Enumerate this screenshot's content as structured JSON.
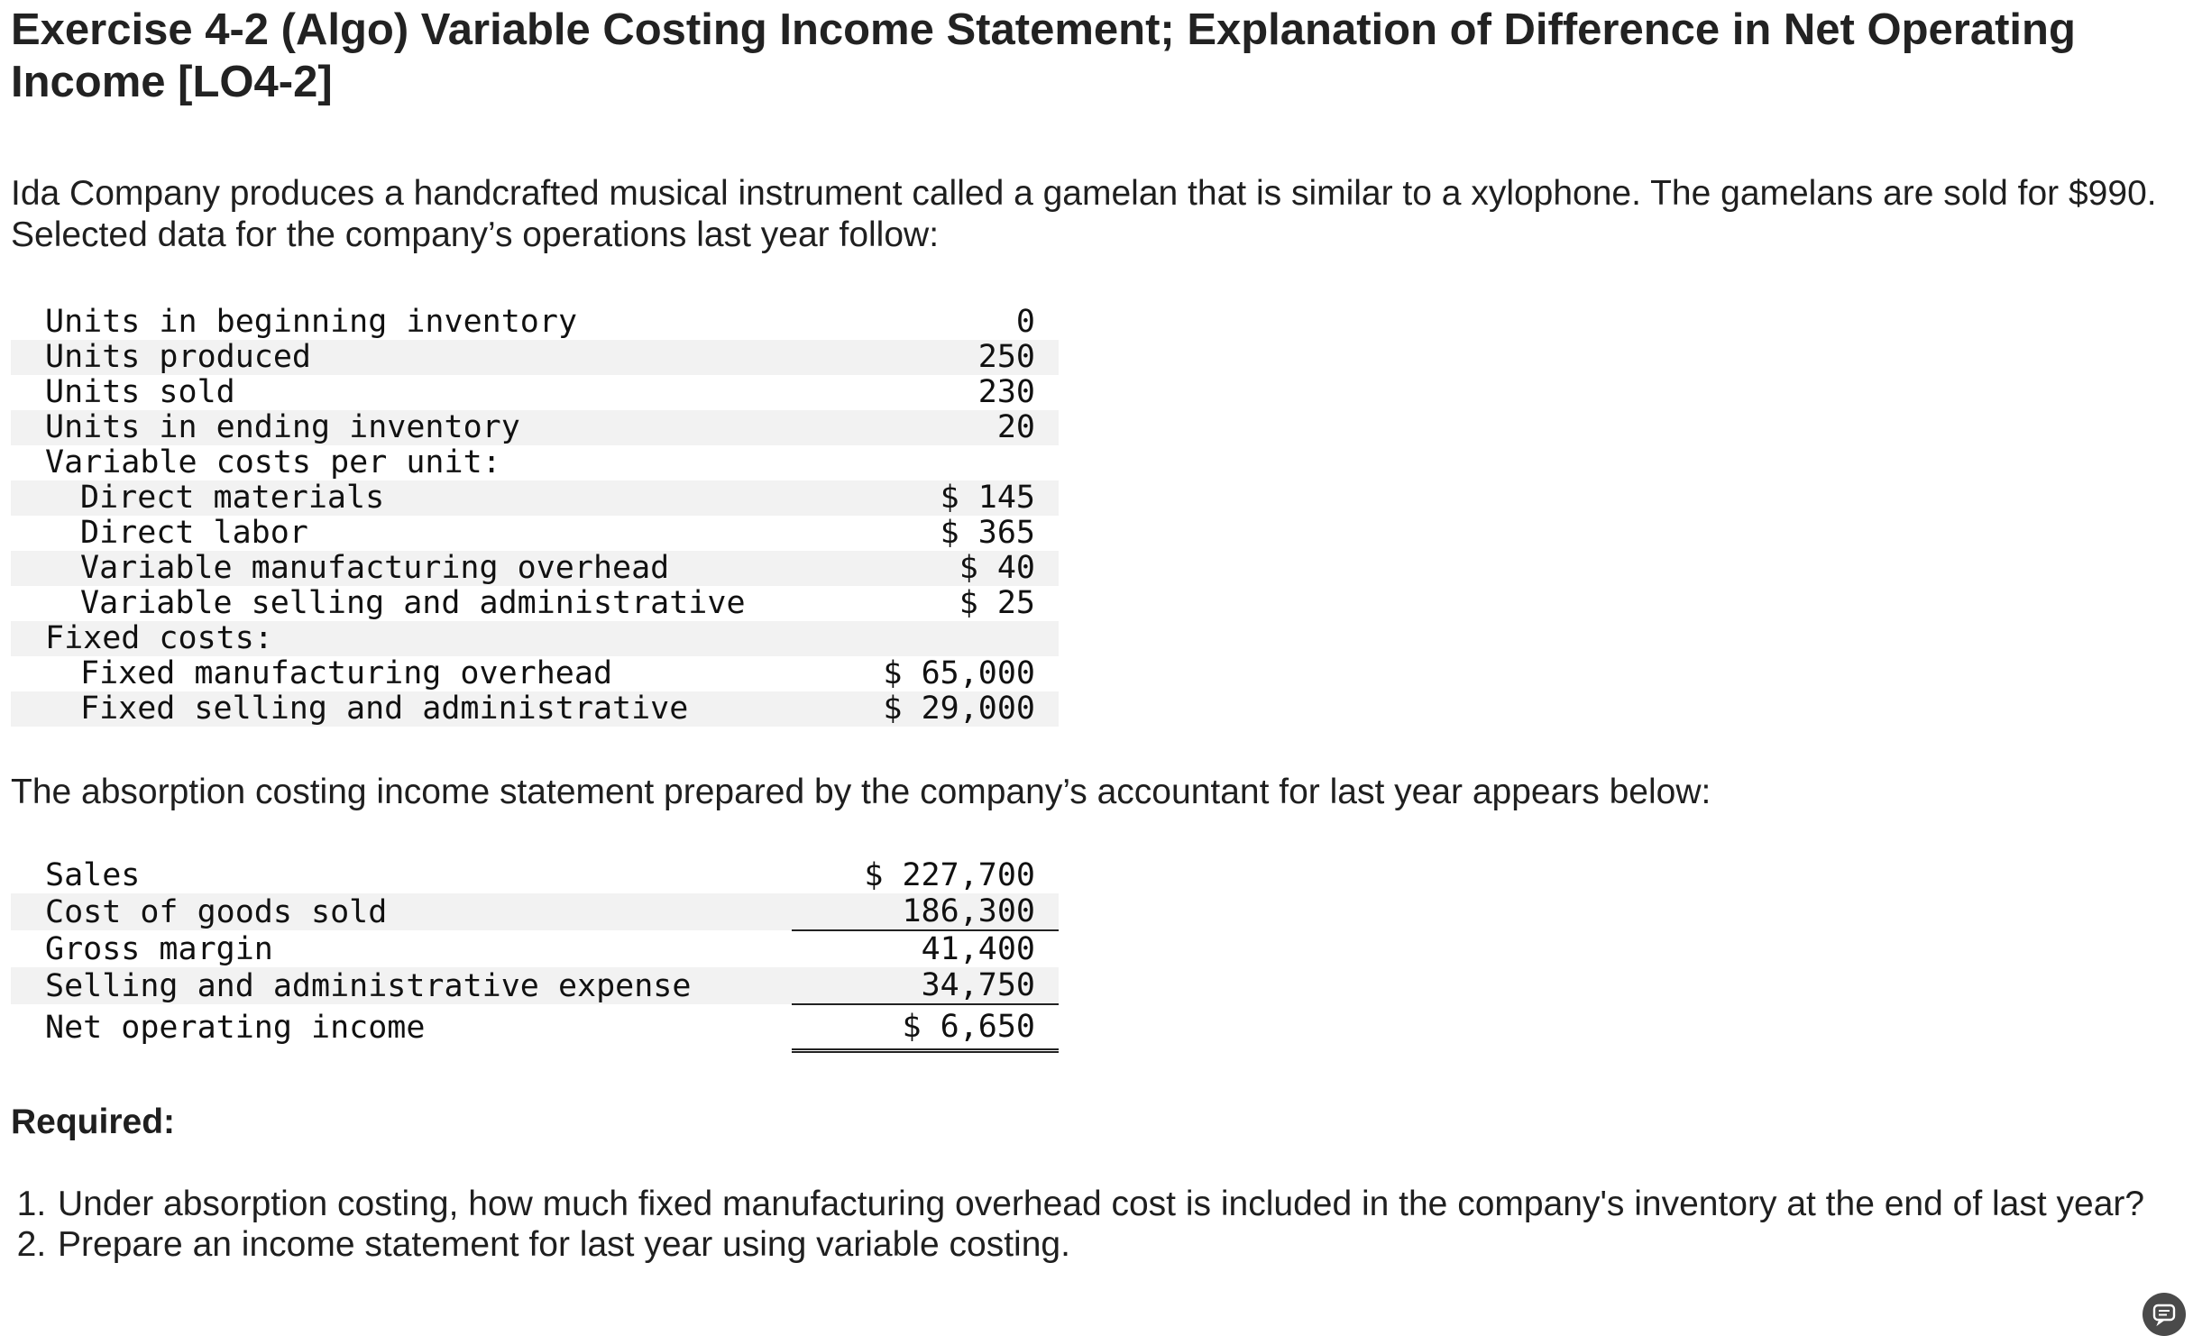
{
  "title": "Exercise 4-2 (Algo) Variable Costing Income Statement; Explanation of Difference in Net Operating Income [LO4-2]",
  "intro": "Ida Company produces a handcrafted musical instrument called a gamelan that is similar to a xylophone. The gamelans are sold for $990. Selected data for the company’s operations last year follow:",
  "selected_data": [
    {
      "label": "Units in beginning inventory",
      "value": "0"
    },
    {
      "label": "Units produced",
      "value": "250"
    },
    {
      "label": "Units sold",
      "value": "230"
    },
    {
      "label": "Units in ending inventory",
      "value": "20"
    },
    {
      "label": "Variable costs per unit:",
      "value": ""
    },
    {
      "label": "Direct materials",
      "value": "$ 145"
    },
    {
      "label": "Direct labor",
      "value": "$ 365"
    },
    {
      "label": "Variable manufacturing overhead",
      "value": "$ 40"
    },
    {
      "label": "Variable selling and administrative",
      "value": "$ 25"
    },
    {
      "label": "Fixed costs:",
      "value": ""
    },
    {
      "label": "Fixed manufacturing overhead",
      "value": "$ 65,000"
    },
    {
      "label": "Fixed selling and administrative",
      "value": "$ 29,000"
    }
  ],
  "absorption_intro": "The absorption costing income statement prepared by the company’s accountant for last year appears below:",
  "absorption_statement": [
    {
      "label": "Sales",
      "value": "$ 227,700"
    },
    {
      "label": "Cost of goods sold",
      "value": "186,300"
    },
    {
      "label": "Gross margin",
      "value": "41,400"
    },
    {
      "label": "Selling and administrative expense",
      "value": "34,750"
    },
    {
      "label": "Net operating income",
      "value": "$ 6,650"
    }
  ],
  "required_heading": "Required:",
  "required_items": [
    "Under absorption costing, how much fixed manufacturing overhead cost is included in the company's inventory at the end of last year?",
    "Prepare an income statement for last year using variable costing."
  ],
  "chat_icon": "chat-bubble-icon"
}
